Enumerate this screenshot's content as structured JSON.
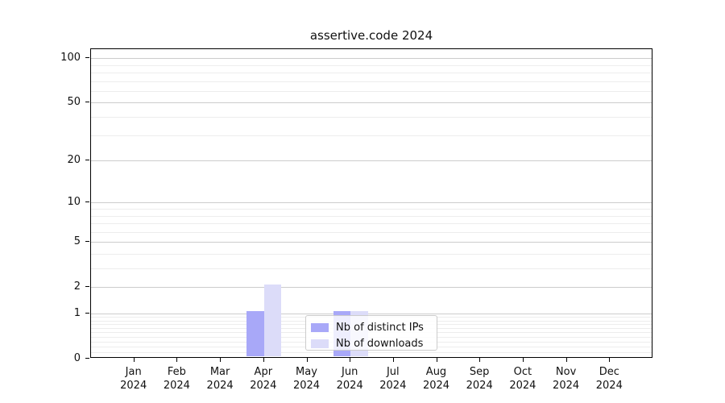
{
  "chart_data": {
    "type": "bar",
    "title": "assertive.code 2024",
    "categories": [
      {
        "month": "Jan",
        "year": "2024"
      },
      {
        "month": "Feb",
        "year": "2024"
      },
      {
        "month": "Mar",
        "year": "2024"
      },
      {
        "month": "Apr",
        "year": "2024"
      },
      {
        "month": "May",
        "year": "2024"
      },
      {
        "month": "Jun",
        "year": "2024"
      },
      {
        "month": "Jul",
        "year": "2024"
      },
      {
        "month": "Aug",
        "year": "2024"
      },
      {
        "month": "Sep",
        "year": "2024"
      },
      {
        "month": "Oct",
        "year": "2024"
      },
      {
        "month": "Nov",
        "year": "2024"
      },
      {
        "month": "Dec",
        "year": "2024"
      }
    ],
    "series": [
      {
        "name": "Nb of distinct IPs",
        "color": "#a8a8f8",
        "values": [
          0,
          0,
          0,
          1,
          0,
          1,
          0,
          0,
          0,
          0,
          0,
          0
        ]
      },
      {
        "name": "Nb of downloads",
        "color": "#dcdcf9",
        "values": [
          0,
          0,
          0,
          2,
          0,
          1,
          0,
          0,
          0,
          0,
          0,
          0
        ]
      }
    ],
    "y_axis": {
      "scale": "log10(1+x)",
      "tick_values": [
        0,
        1,
        2,
        5,
        10,
        20,
        50,
        100
      ],
      "tick_labels": [
        "0",
        "1",
        "2",
        "5",
        "10",
        "20",
        "50",
        "100"
      ],
      "minor_gridline_values": [
        0.1,
        0.2,
        0.3,
        0.4,
        0.5,
        0.6,
        0.7,
        0.8,
        0.9,
        3,
        4,
        6,
        7,
        8,
        9,
        30,
        40,
        60,
        70,
        80,
        90
      ],
      "ylim": [
        0,
        115
      ]
    },
    "x_axis": {
      "gridlines": false
    },
    "legend": {
      "position": "lower-center"
    },
    "colors": {
      "axis": "#000000",
      "grid_major": "#cccccc",
      "grid_minor": "#ededed",
      "bar_distinct_ips": "#a8a8f8",
      "bar_downloads": "#dcdcf9",
      "legend_border": "#cccccc"
    }
  }
}
